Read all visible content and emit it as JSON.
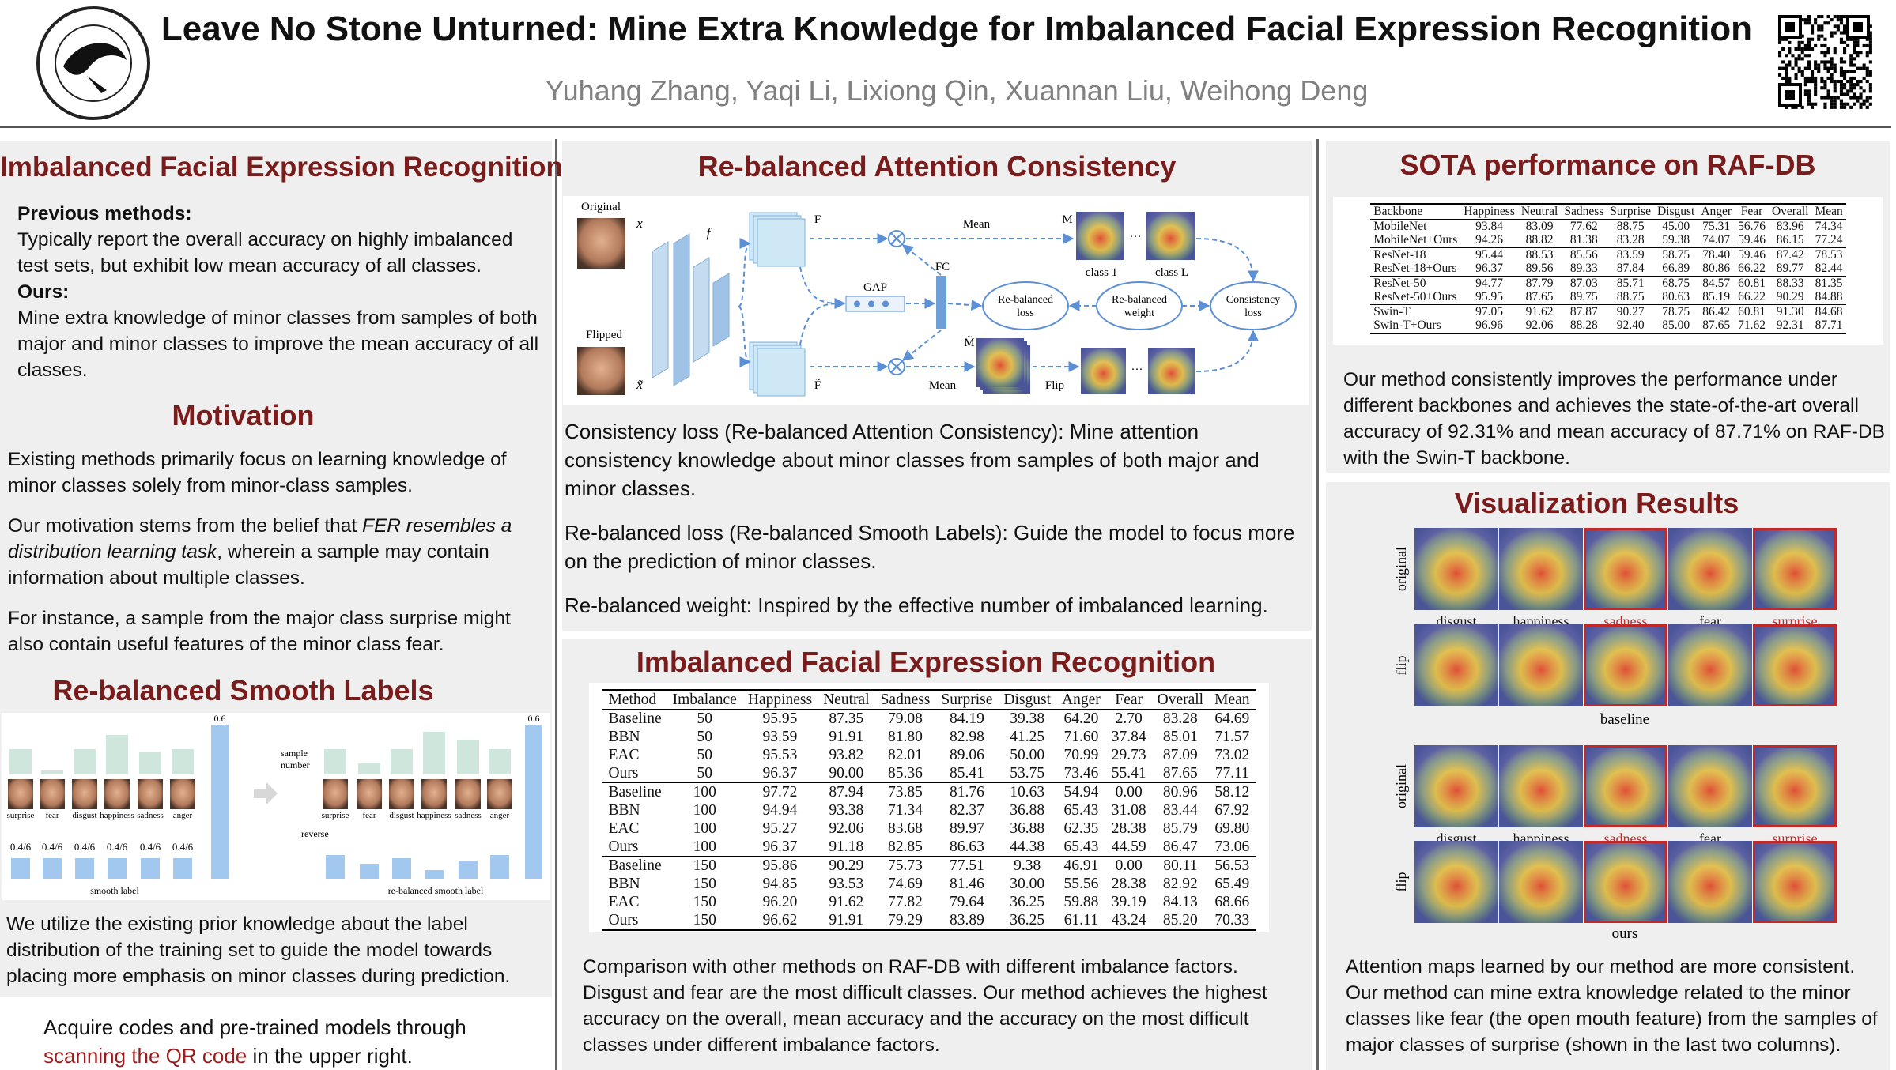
{
  "header": {
    "title": "Leave No Stone Unturned: Mine Extra Knowledge for Imbalanced Facial Expression Recognition",
    "authors": "Yuhang Zhang, Yaqi Li, Lixiong Qin, Xuannan Liu, Weihong Deng"
  },
  "left": {
    "intro": {
      "title": "Imbalanced Facial Expression Recognition",
      "previous_label": "Previous methods:",
      "previous_text": "Typically report the overall accuracy on highly imbalanced test sets, but exhibit low mean accuracy of all classes.",
      "ours_label": "Ours:",
      "ours_text": "Mine extra knowledge of minor classes from samples of both major and minor classes to improve the mean accuracy of all classes."
    },
    "motivation": {
      "title": "Motivation",
      "p1": "Existing methods primarily focus on learning knowledge of minor classes solely from minor-class samples.",
      "p2_start": "Our motivation stems from the belief that ",
      "p2_italic": "FER resembles a distribution learning task",
      "p2_end": ", wherein a sample may contain information about multiple classes.",
      "p3": "For instance, a sample from the major class surprise might also contain useful features of the minor class fear."
    },
    "smooth_labels": {
      "title": "Re-balanced Smooth Labels",
      "figure": {
        "peak": "0.6",
        "sample_number_lines": [
          "sample",
          "number"
        ],
        "classes": [
          "surprise",
          "fear",
          "disgust",
          "happiness",
          "sadness",
          "anger"
        ],
        "uniform": "0.4/6",
        "reverse": "reverse",
        "left_caption": "smooth label",
        "right_caption": "re-balanced smooth label"
      },
      "text": "We utilize the existing prior knowledge about the label distribution of the training set to guide the model towards placing more emphasis on minor classes during prediction."
    },
    "acquire": {
      "start": "Acquire codes and pre-trained models through ",
      "link": "scanning the QR code",
      "end": " in the upper right."
    }
  },
  "middle": {
    "attention": {
      "title": "Re-balanced Attention Consistency",
      "diagram": {
        "original": "Original",
        "flipped": "Flipped",
        "x": "x",
        "x_tilde": "x̃",
        "f": "f",
        "F": "F",
        "F_tilde": "F̃",
        "mean": "Mean",
        "M": "M",
        "M_tilde": "M̃",
        "gap": "GAP",
        "fc": "FC",
        "class_1": "class 1",
        "class_L": "class L",
        "ellipsis": "···",
        "loss_lines": [
          "Re-balanced",
          "loss"
        ],
        "weight_lines": [
          "Re-balanced",
          "weight"
        ],
        "consistency_lines": [
          "Consistency",
          "loss"
        ],
        "flip": "Flip"
      },
      "p1": "Consistency loss (Re-balanced Attention Consistency): Mine attention consistency knowledge about minor classes from samples of both major and minor classes.",
      "p2": "Re-balanced loss (Re-balanced Smooth Labels): Guide the model to focus more on the prediction of minor classes.",
      "p3": "Re-balanced weight: Inspired by the effective number of imbalanced learning."
    },
    "results": {
      "title": "Imbalanced Facial Expression Recognition",
      "table": {
        "header": [
          "Method",
          "Imbalance",
          "Happiness",
          "Neutral",
          "Sadness",
          "Surprise",
          "Disgust",
          "Anger",
          "Fear",
          "Overall",
          "Mean"
        ],
        "rows": [
          [
            "Baseline",
            "50",
            "95.95",
            "87.35",
            "79.08",
            "84.19",
            "39.38",
            "64.20",
            "2.70",
            "83.28",
            "64.69"
          ],
          [
            "BBN",
            "50",
            "93.59",
            "91.91",
            "81.80",
            "82.98",
            "41.25",
            "71.60",
            "37.84",
            "85.01",
            "71.57"
          ],
          [
            "EAC",
            "50",
            "95.53",
            "93.82",
            "82.01",
            "89.06",
            "50.00",
            "70.99",
            "29.73",
            "87.09",
            "73.02"
          ],
          [
            "Ours",
            "50",
            "96.37",
            "90.00",
            "85.36",
            "85.41",
            "53.75",
            "73.46",
            "55.41",
            "87.65",
            "77.11"
          ],
          [
            "Baseline",
            "100",
            "97.72",
            "87.94",
            "73.85",
            "81.76",
            "10.63",
            "54.94",
            "0.00",
            "80.96",
            "58.12"
          ],
          [
            "BBN",
            "100",
            "94.94",
            "93.38",
            "71.34",
            "82.37",
            "36.88",
            "65.43",
            "31.08",
            "83.44",
            "67.92"
          ],
          [
            "EAC",
            "100",
            "95.27",
            "92.06",
            "83.68",
            "89.97",
            "36.88",
            "62.35",
            "28.38",
            "85.79",
            "69.80"
          ],
          [
            "Ours",
            "100",
            "96.37",
            "91.18",
            "82.85",
            "86.63",
            "44.38",
            "65.43",
            "44.59",
            "86.47",
            "73.06"
          ],
          [
            "Baseline",
            "150",
            "95.86",
            "90.29",
            "75.73",
            "77.51",
            "9.38",
            "46.91",
            "0.00",
            "80.11",
            "56.53"
          ],
          [
            "BBN",
            "150",
            "94.85",
            "93.53",
            "74.69",
            "81.46",
            "30.00",
            "55.56",
            "28.38",
            "82.92",
            "65.49"
          ],
          [
            "EAC",
            "150",
            "96.20",
            "91.62",
            "77.82",
            "79.64",
            "36.25",
            "59.88",
            "39.19",
            "84.13",
            "68.66"
          ],
          [
            "Ours",
            "150",
            "96.62",
            "91.91",
            "79.29",
            "83.89",
            "36.25",
            "61.11",
            "43.24",
            "85.20",
            "70.33"
          ]
        ]
      },
      "caption": "Comparison with other methods on RAF-DB with different imbalance factors. Disgust and fear are the most difficult classes. Our method achieves the highest accuracy on the overall, mean accuracy and the accuracy on the most difficult classes under different imbalance factors."
    }
  },
  "right": {
    "sota": {
      "title": "SOTA performance on RAF-DB",
      "table": {
        "header": [
          "Backbone",
          "Happiness",
          "Neutral",
          "Sadness",
          "Surprise",
          "Disgust",
          "Anger",
          "Fear",
          "Overall",
          "Mean"
        ],
        "rows": [
          [
            "MobileNet",
            "93.84",
            "83.09",
            "77.62",
            "88.75",
            "45.00",
            "75.31",
            "56.76",
            "83.96",
            "74.34"
          ],
          [
            "MobileNet+Ours",
            "94.26",
            "88.82",
            "81.38",
            "83.28",
            "59.38",
            "74.07",
            "59.46",
            "86.15",
            "77.24"
          ],
          [
            "ResNet-18",
            "95.44",
            "88.53",
            "85.56",
            "83.59",
            "58.75",
            "78.40",
            "59.46",
            "87.42",
            "78.53"
          ],
          [
            "ResNet-18+Ours",
            "96.37",
            "89.56",
            "89.33",
            "87.84",
            "66.89",
            "80.86",
            "66.22",
            "89.77",
            "82.44"
          ],
          [
            "ResNet-50",
            "94.77",
            "87.79",
            "87.03",
            "85.71",
            "68.75",
            "84.57",
            "60.81",
            "88.33",
            "81.35"
          ],
          [
            "ResNet-50+Ours",
            "95.95",
            "87.65",
            "89.75",
            "88.75",
            "80.63",
            "85.19",
            "66.22",
            "90.29",
            "84.88"
          ],
          [
            "Swin-T",
            "97.05",
            "91.62",
            "87.87",
            "90.27",
            "78.75",
            "86.42",
            "60.81",
            "91.30",
            "84.68"
          ],
          [
            "Swin-T+Ours",
            "96.96",
            "92.06",
            "88.28",
            "92.40",
            "85.00",
            "87.65",
            "71.62",
            "92.31",
            "87.71"
          ]
        ]
      },
      "text": "Our method consistently improves the performance under different backbones and achieves the state-of-the-art overall accuracy of 92.31% and mean accuracy of 87.71% on RAF-DB with the Swin-T backbone."
    },
    "visualization": {
      "title": "Visualization Results",
      "row_labels": [
        "original",
        "flip"
      ],
      "classes": [
        "disgust",
        "happiness",
        "sadness",
        "fear",
        "surprise"
      ],
      "baseline": "baseline",
      "ours": "ours",
      "text": "Attention maps learned by our method are more consistent. Our method can mine extra knowledge related to the minor classes like fear (the open mouth feature) from the samples of major classes of surprise (shown in the last two columns)."
    }
  }
}
